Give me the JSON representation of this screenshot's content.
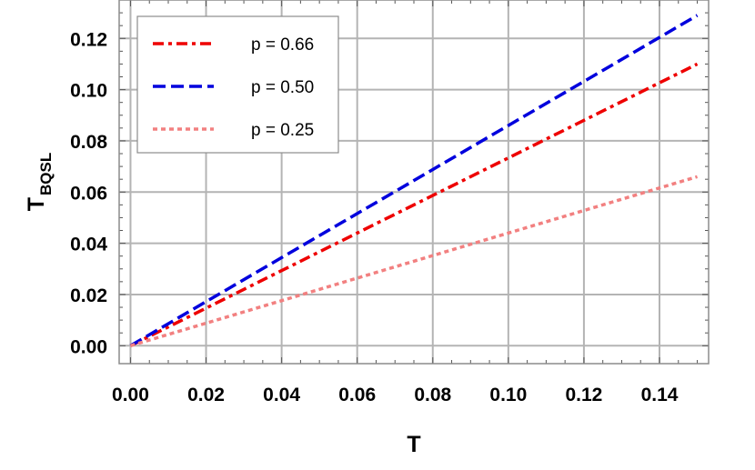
{
  "chart_data": {
    "type": "line",
    "xlabel": "T",
    "ylabel_main": "T",
    "ylabel_sub": "BQSL",
    "xlim": [
      -0.003,
      0.153
    ],
    "ylim": [
      -0.007,
      0.135
    ],
    "xticks": [
      "0.00",
      "0.02",
      "0.04",
      "0.06",
      "0.08",
      "0.10",
      "0.12",
      "0.14"
    ],
    "xtick_values": [
      0,
      0.02,
      0.04,
      0.06,
      0.08,
      0.1,
      0.12,
      0.14
    ],
    "yticks": [
      "0.00",
      "0.02",
      "0.04",
      "0.06",
      "0.08",
      "0.10",
      "0.12"
    ],
    "ytick_values": [
      0,
      0.02,
      0.04,
      0.06,
      0.08,
      0.1,
      0.12
    ],
    "grid": true,
    "legend_position": "top-left",
    "series": [
      {
        "name": "p = 0.66",
        "color": "#ee0000",
        "style": "dash-dot",
        "x": [
          0,
          0.15
        ],
        "y": [
          0,
          0.11
        ]
      },
      {
        "name": "p = 0.50",
        "color": "#0000dd",
        "style": "dashed",
        "x": [
          0,
          0.15
        ],
        "y": [
          0,
          0.129
        ]
      },
      {
        "name": "p = 0.25",
        "color": "#f28080",
        "style": "dotted",
        "x": [
          0,
          0.15
        ],
        "y": [
          0,
          0.066
        ]
      }
    ]
  }
}
